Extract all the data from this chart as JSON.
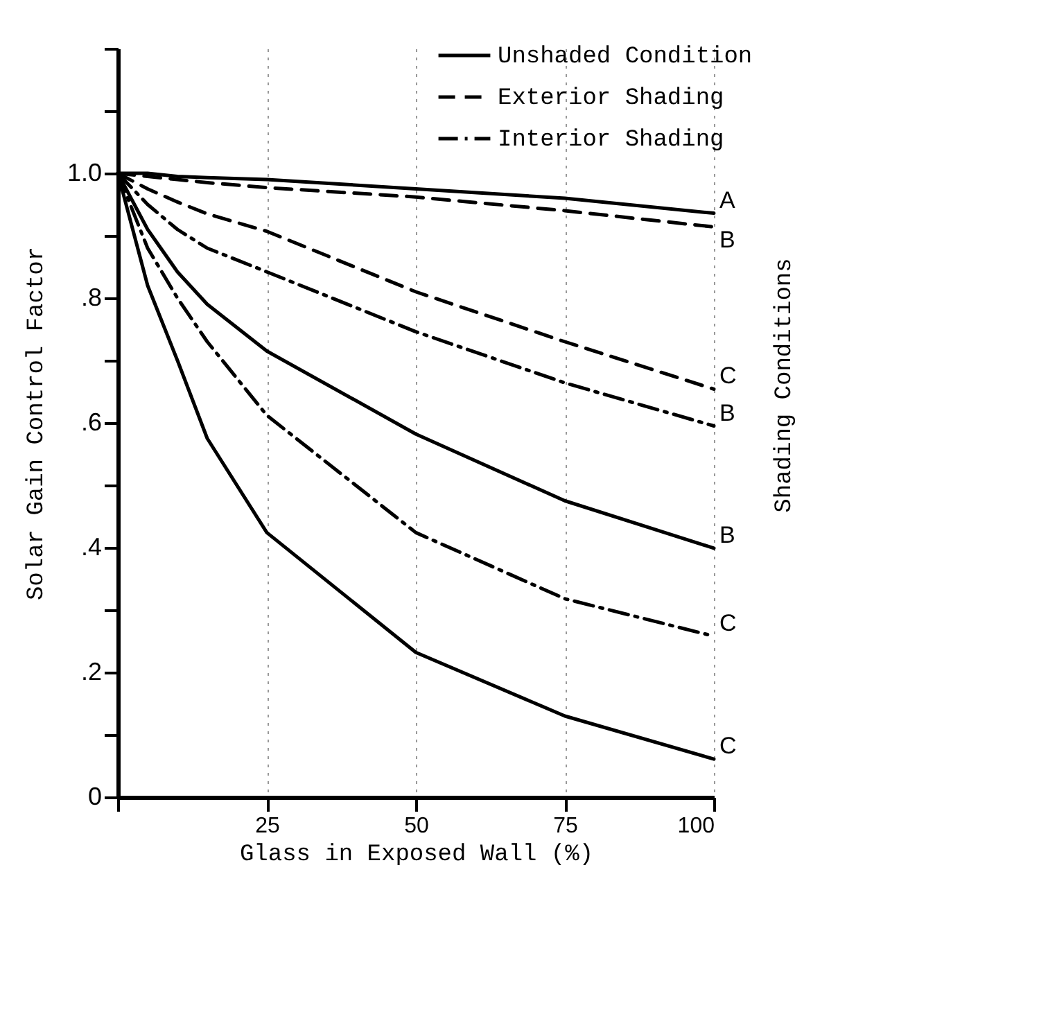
{
  "chart_data": {
    "type": "line",
    "xlabel": "Glass in Exposed Wall (%)",
    "ylabel": "Solar Gain Control Factor",
    "y2label": "Shading Conditions",
    "xlim": [
      0,
      100
    ],
    "ylim": [
      0,
      1.2
    ],
    "xticks": [
      {
        "value": 0,
        "label": null
      },
      25,
      50,
      75,
      100
    ],
    "yticks": [
      0,
      {
        "value": 0.1,
        "label": null
      },
      {
        "value": 0.2,
        "label": ".2"
      },
      {
        "value": 0.3,
        "label": null
      },
      {
        "value": 0.4,
        "label": ".4"
      },
      {
        "value": 0.5,
        "label": null
      },
      {
        "value": 0.6,
        "label": ".6"
      },
      {
        "value": 0.7,
        "label": null
      },
      {
        "value": 0.8,
        "label": ".8"
      },
      {
        "value": 0.9,
        "label": null
      },
      {
        "value": 1.0,
        "label": "1.0"
      },
      {
        "value": 1.1,
        "label": null
      },
      {
        "value": 1.2,
        "label": null
      }
    ],
    "grid": "x",
    "legend": "top right",
    "marker": "none",
    "x": [
      0,
      5,
      10,
      15,
      25,
      50,
      75,
      100
    ],
    "series": [
      {
        "name": "Unshaded Condition",
        "color": "#000000",
        "line_style": "solid",
        "values": [
          1.0,
          1.0,
          0.995,
          0.993,
          0.99,
          0.975,
          0.96,
          0.936
        ]
      },
      {
        "name": "Exterior Shading",
        "color": "#000000",
        "line_style": "dashed",
        "values": [
          1.0,
          0.995,
          0.99,
          0.985,
          0.977,
          0.962,
          0.94,
          0.914
        ]
      },
      {
        "color": "#000000",
        "line_style": "dashed",
        "values": [
          1.0,
          0.975,
          0.954,
          0.935,
          0.907,
          0.81,
          0.73,
          0.654
        ]
      },
      {
        "name": "Interior Shading",
        "color": "#000000",
        "line_style": "dashdot",
        "values": [
          1.0,
          0.95,
          0.91,
          0.88,
          0.842,
          0.746,
          0.664,
          0.595
        ]
      },
      {
        "color": "#000000",
        "line_style": "solid",
        "values": [
          1.0,
          0.91,
          0.842,
          0.79,
          0.715,
          0.582,
          0.475,
          0.399
        ]
      },
      {
        "color": "#000000",
        "line_style": "dashdot",
        "values": [
          1.0,
          0.88,
          0.8,
          0.73,
          0.612,
          0.424,
          0.318,
          0.258
        ]
      },
      {
        "color": "#000000",
        "line_style": "solid",
        "values": [
          1.0,
          0.82,
          0.7,
          0.575,
          0.424,
          0.232,
          0.13,
          0.061
        ]
      }
    ],
    "annotations": [
      "A",
      "B",
      "C",
      "B",
      "B",
      "C",
      "C"
    ]
  }
}
